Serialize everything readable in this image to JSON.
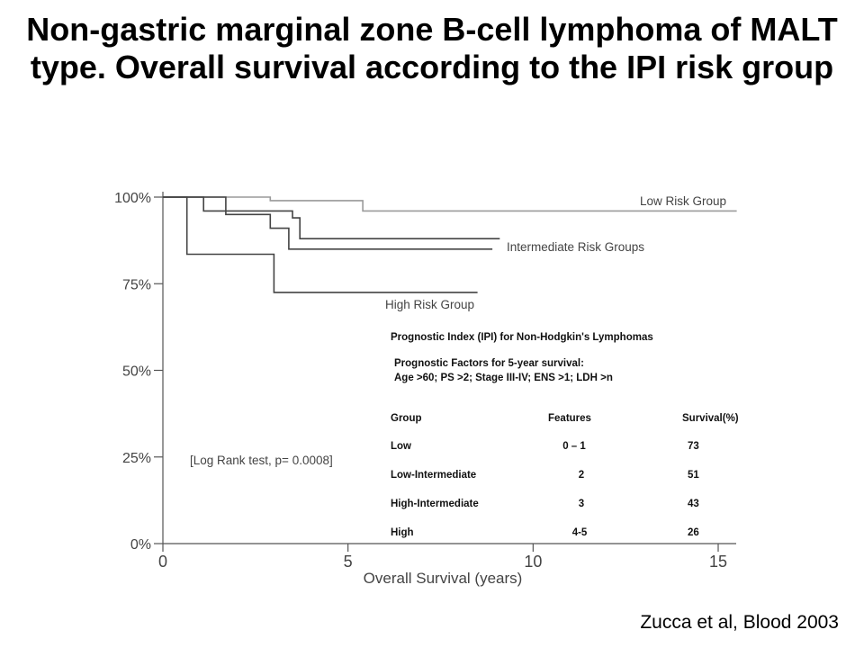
{
  "slide": {
    "title_line1": "Non-gastric marginal zone B-cell lymphoma of MALT",
    "title_line2": "type. Overall survival according to the IPI risk group",
    "citation": "Zucca et al, Blood 2003"
  },
  "chart_data": {
    "type": "line",
    "xlabel": "Overall Survival (years)",
    "ylabel": "",
    "xlim": [
      0,
      15
    ],
    "ylim": [
      0,
      100
    ],
    "x_ticks": [
      0,
      5,
      10,
      15
    ],
    "y_ticks": [
      0,
      25,
      50,
      75,
      100
    ],
    "y_tick_labels": [
      "0%",
      "25%",
      "50%",
      "75%",
      "100%"
    ],
    "grid": false,
    "series": [
      {
        "name": "Low Risk Group",
        "color": "#9a9a9a",
        "points": [
          [
            0,
            100
          ],
          [
            2.9,
            100
          ],
          [
            2.9,
            99
          ],
          [
            5.4,
            99
          ],
          [
            5.4,
            96
          ],
          [
            15.5,
            96
          ]
        ]
      },
      {
        "name": "Intermediate Risk Groups",
        "color": "#444444",
        "points": [
          [
            0,
            100
          ],
          [
            1.1,
            100
          ],
          [
            1.1,
            96
          ],
          [
            3.5,
            96
          ],
          [
            3.5,
            94
          ],
          [
            3.7,
            94
          ],
          [
            3.7,
            88
          ],
          [
            9.1,
            88
          ]
        ]
      },
      {
        "name": "Intermediate Risk Groups",
        "color": "#444444",
        "points": [
          [
            0,
            100
          ],
          [
            1.7,
            100
          ],
          [
            1.7,
            95
          ],
          [
            2.9,
            95
          ],
          [
            2.9,
            91
          ],
          [
            3.4,
            91
          ],
          [
            3.4,
            85
          ],
          [
            8.9,
            85
          ]
        ]
      },
      {
        "name": "High Risk Group",
        "color": "#444444",
        "points": [
          [
            0,
            100
          ],
          [
            0.65,
            100
          ],
          [
            0.65,
            83.5
          ],
          [
            3.0,
            83.5
          ],
          [
            3.0,
            72.5
          ],
          [
            8.5,
            72.5
          ]
        ]
      }
    ],
    "annotations": {
      "low": "Low Risk Group",
      "intermediate": "Intermediate Risk Groups",
      "high": "High Risk Group",
      "logrank": "[Log Rank test, p= 0.0008]"
    },
    "ipi_table": {
      "title": "Prognostic Index (IPI) for Non-Hodgkin's Lymphomas",
      "factors_line1": "Prognostic Factors for 5-year survival:",
      "factors_line2": "Age >60; PS >2; Stage III-IV; ENS >1; LDH >n",
      "headers": [
        "Group",
        "Features",
        "Survival(%)"
      ],
      "rows": [
        [
          "Low",
          "0 – 1",
          "73"
        ],
        [
          "Low-Intermediate",
          "2",
          "51"
        ],
        [
          "High-Intermediate",
          "3",
          "43"
        ],
        [
          "High",
          "4-5",
          "26"
        ]
      ]
    }
  }
}
